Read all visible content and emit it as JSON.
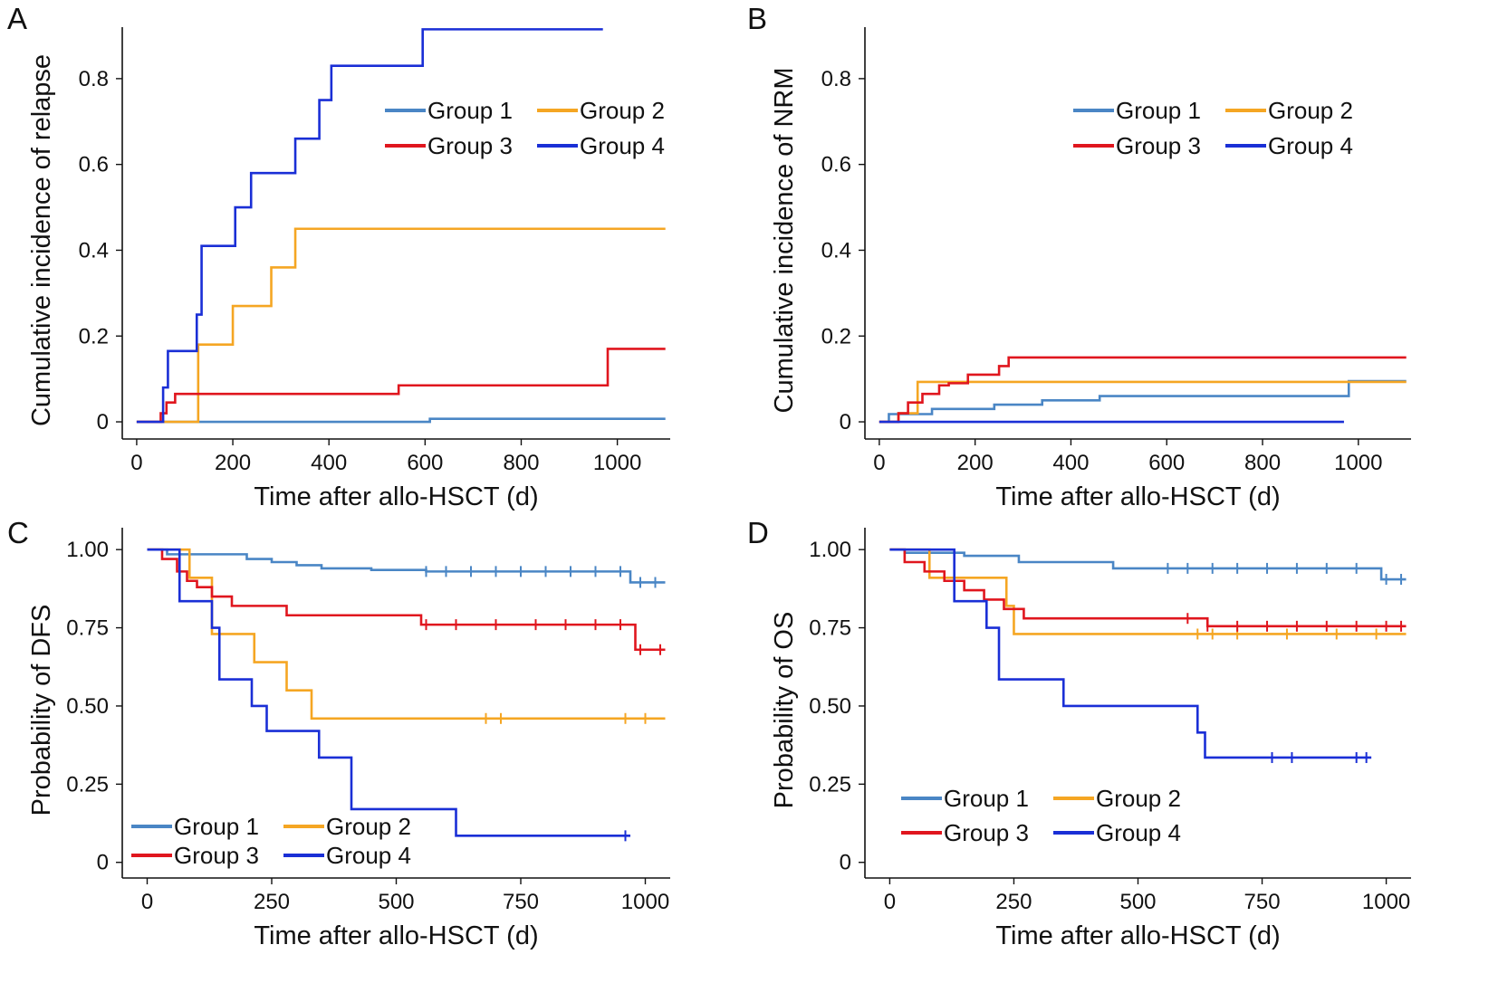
{
  "figure": {
    "legend_labels": [
      "Group 1",
      "Group 2",
      "Group 3",
      "Group 4"
    ],
    "colors": {
      "Group 1": "#4a86c5",
      "Group 2": "#f5a623",
      "Group 3": "#e0161e",
      "Group 4": "#1a2fd6"
    }
  },
  "chart_data": [
    {
      "panel": "A",
      "type": "line",
      "title": "",
      "xlabel": "Time after allo-HSCT (d)",
      "ylabel": "Cumulative incidence of relapse",
      "xlim": [
        -30,
        1110
      ],
      "ylim": [
        -0.04,
        0.92
      ],
      "xticks": [
        0,
        200,
        400,
        600,
        800,
        1000
      ],
      "xtick_labels": [
        "0",
        "200",
        "400",
        "600",
        "800",
        "1000"
      ],
      "yticks": [
        0,
        0.2,
        0.4,
        0.6,
        0.8
      ],
      "ytick_labels": [
        "0",
        "0.2",
        "0.4",
        "0.6",
        "0.8"
      ],
      "legend_position": "top-right",
      "series": [
        {
          "name": "Group 1",
          "step": true,
          "x": [
            0,
            610,
            1100
          ],
          "y": [
            0,
            0.007,
            0.007
          ]
        },
        {
          "name": "Group 2",
          "step": true,
          "x": [
            0,
            128,
            135,
            200,
            280,
            330,
            1100
          ],
          "y": [
            0,
            0.18,
            0.18,
            0.27,
            0.36,
            0.45,
            0.45
          ]
        },
        {
          "name": "Group 3",
          "step": true,
          "x": [
            0,
            50,
            62,
            80,
            400,
            545,
            980,
            1100
          ],
          "y": [
            0,
            0.02,
            0.045,
            0.065,
            0.065,
            0.085,
            0.17,
            0.17
          ]
        },
        {
          "name": "Group 4",
          "step": true,
          "x": [
            0,
            55,
            65,
            125,
            135,
            205,
            238,
            330,
            380,
            405,
            595,
            970
          ],
          "y": [
            0,
            0.08,
            0.165,
            0.25,
            0.41,
            0.5,
            0.58,
            0.66,
            0.75,
            0.83,
            0.915,
            0.915
          ]
        }
      ]
    },
    {
      "panel": "B",
      "type": "line",
      "title": "",
      "xlabel": "Time after allo-HSCT (d)",
      "ylabel": "Cumulative incidence of NRM",
      "xlim": [
        -30,
        1110
      ],
      "ylim": [
        -0.04,
        0.92
      ],
      "xticks": [
        0,
        200,
        400,
        600,
        800,
        1000
      ],
      "xtick_labels": [
        "0",
        "200",
        "400",
        "600",
        "800",
        "1000"
      ],
      "yticks": [
        0,
        0.2,
        0.4,
        0.6,
        0.8
      ],
      "ytick_labels": [
        "0",
        "0.2",
        "0.4",
        "0.6",
        "0.8"
      ],
      "legend_position": "top-right",
      "series": [
        {
          "name": "Group 1",
          "step": true,
          "x": [
            0,
            20,
            110,
            240,
            340,
            460,
            980,
            1100
          ],
          "y": [
            0,
            0.018,
            0.03,
            0.04,
            0.05,
            0.06,
            0.095,
            0.095
          ]
        },
        {
          "name": "Group 2",
          "step": true,
          "x": [
            0,
            40,
            80,
            1100
          ],
          "y": [
            0,
            0.02,
            0.093,
            0.093
          ]
        },
        {
          "name": "Group 3",
          "step": true,
          "x": [
            0,
            40,
            60,
            90,
            125,
            145,
            185,
            225,
            250,
            270,
            1100
          ],
          "y": [
            0,
            0.02,
            0.045,
            0.065,
            0.085,
            0.09,
            0.11,
            0.11,
            0.13,
            0.15,
            0.15
          ]
        },
        {
          "name": "Group 4",
          "step": true,
          "x": [
            0,
            970
          ],
          "y": [
            0,
            0
          ]
        }
      ]
    },
    {
      "panel": "C",
      "type": "line",
      "title": "",
      "xlabel": "Time after allo-HSCT (d)",
      "ylabel": "Probability of DFS",
      "xlim": [
        -50,
        1050
      ],
      "ylim": [
        -0.05,
        1.07
      ],
      "xticks": [
        0,
        250,
        500,
        750,
        1000
      ],
      "xtick_labels": [
        "0",
        "250",
        "500",
        "750",
        "1000"
      ],
      "yticks": [
        0,
        0.25,
        0.5,
        0.75,
        1.0
      ],
      "ytick_labels": [
        "0",
        "0.25",
        "0.50",
        "0.75",
        "1.00"
      ],
      "legend_position": "bottom-left",
      "series": [
        {
          "name": "Group 1",
          "step": true,
          "x": [
            0,
            40,
            200,
            250,
            300,
            350,
            450,
            560,
            970,
            1040
          ],
          "y": [
            1.0,
            0.985,
            0.97,
            0.96,
            0.95,
            0.94,
            0.935,
            0.93,
            0.895,
            0.895
          ],
          "censor_x": [
            560,
            600,
            650,
            700,
            750,
            800,
            850,
            900,
            950,
            990,
            1020
          ]
        },
        {
          "name": "Group 2",
          "step": true,
          "x": [
            0,
            85,
            130,
            215,
            280,
            330,
            1040
          ],
          "y": [
            1.0,
            0.91,
            0.73,
            0.64,
            0.55,
            0.46,
            0.46
          ],
          "censor_x": [
            680,
            710,
            960,
            1000
          ]
        },
        {
          "name": "Group 3",
          "step": true,
          "x": [
            0,
            30,
            60,
            80,
            100,
            130,
            170,
            280,
            550,
            980,
            1040
          ],
          "y": [
            1.0,
            0.97,
            0.93,
            0.9,
            0.88,
            0.85,
            0.82,
            0.79,
            0.76,
            0.68,
            0.68
          ],
          "censor_x": [
            560,
            620,
            700,
            780,
            840,
            900,
            950,
            990,
            1030
          ]
        },
        {
          "name": "Group 4",
          "step": true,
          "x": [
            0,
            65,
            130,
            145,
            210,
            240,
            345,
            410,
            620,
            970
          ],
          "y": [
            1.0,
            0.835,
            0.75,
            0.585,
            0.5,
            0.42,
            0.335,
            0.17,
            0.085,
            0.085
          ],
          "censor_x": [
            960
          ]
        }
      ]
    },
    {
      "panel": "D",
      "type": "line",
      "title": "",
      "xlabel": "Time after allo-HSCT (d)",
      "ylabel": "Probability of OS",
      "xlim": [
        -50,
        1050
      ],
      "ylim": [
        -0.05,
        1.07
      ],
      "xticks": [
        0,
        250,
        500,
        750,
        1000
      ],
      "xtick_labels": [
        "0",
        "250",
        "500",
        "750",
        "1000"
      ],
      "yticks": [
        0,
        0.25,
        0.5,
        0.75,
        1.0
      ],
      "ytick_labels": [
        "0",
        "0.25",
        "0.50",
        "0.75",
        "1.00"
      ],
      "legend_position": "bottom-left",
      "series": [
        {
          "name": "Group 1",
          "step": true,
          "x": [
            0,
            30,
            150,
            260,
            450,
            990,
            1040
          ],
          "y": [
            1.0,
            0.99,
            0.98,
            0.96,
            0.94,
            0.905,
            0.905
          ],
          "censor_x": [
            560,
            600,
            650,
            700,
            760,
            820,
            880,
            940,
            1000,
            1030
          ]
        },
        {
          "name": "Group 2",
          "step": true,
          "x": [
            0,
            80,
            90,
            160,
            235,
            250,
            1040
          ],
          "y": [
            1.0,
            0.91,
            0.91,
            0.91,
            0.82,
            0.73,
            0.73
          ],
          "censor_x": [
            620,
            650,
            700,
            800,
            900,
            980
          ]
        },
        {
          "name": "Group 3",
          "step": true,
          "x": [
            0,
            30,
            70,
            110,
            150,
            190,
            230,
            270,
            640,
            1040
          ],
          "y": [
            1.0,
            0.96,
            0.93,
            0.9,
            0.87,
            0.84,
            0.81,
            0.78,
            0.755,
            0.755
          ],
          "censor_x": [
            600,
            640,
            700,
            760,
            820,
            880,
            940,
            1000,
            1030
          ]
        },
        {
          "name": "Group 4",
          "step": true,
          "x": [
            0,
            130,
            195,
            220,
            350,
            620,
            635,
            970
          ],
          "y": [
            1.0,
            0.835,
            0.75,
            0.585,
            0.5,
            0.415,
            0.335,
            0.335
          ],
          "censor_x": [
            770,
            810,
            940,
            960
          ]
        }
      ]
    }
  ]
}
